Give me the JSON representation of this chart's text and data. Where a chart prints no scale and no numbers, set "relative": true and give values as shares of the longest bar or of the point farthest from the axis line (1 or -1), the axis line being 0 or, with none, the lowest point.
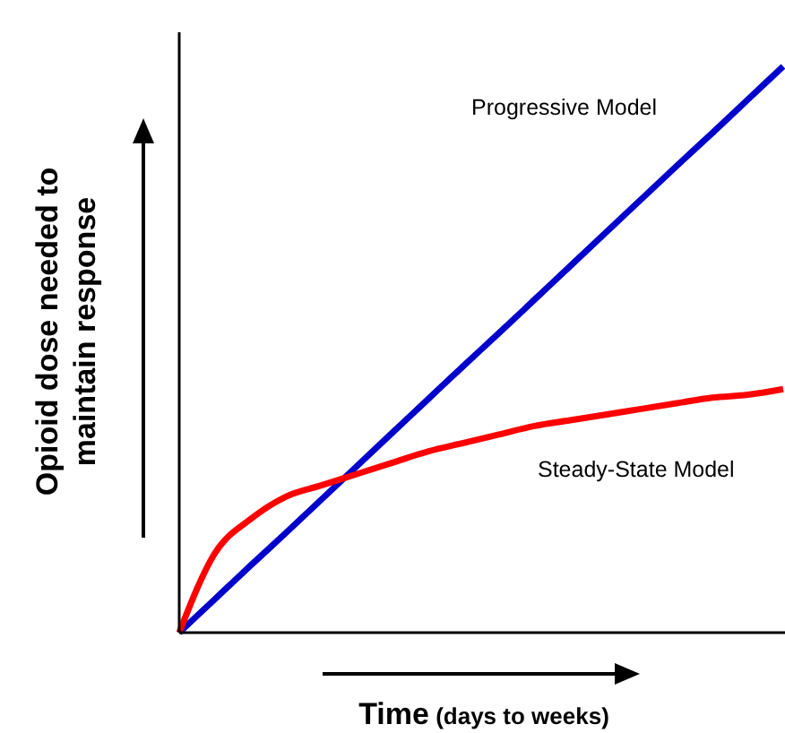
{
  "chart_data": {
    "type": "line",
    "relative": true,
    "xlabel": "Time (days to weeks)",
    "ylabel": "Opioid dose needed to maintain response",
    "categories": [
      null,
      null,
      null,
      null,
      null,
      null,
      null,
      null,
      null,
      null,
      null,
      null,
      null,
      null,
      null,
      null,
      null,
      null
    ],
    "series": [
      {
        "name": "Progressive Model",
        "color": "#0000cc",
        "values": [
          0,
          0.059,
          0.118,
          0.176,
          0.235,
          0.294,
          0.353,
          0.412,
          0.471,
          0.529,
          0.588,
          0.647,
          0.706,
          0.765,
          0.824,
          0.882,
          0.941,
          1
        ]
      },
      {
        "name": "Steady-State Model",
        "color": "#ff0000",
        "values": [
          0,
          0.14,
          0.2,
          0.24,
          0.26,
          0.28,
          0.3,
          0.32,
          0.335,
          0.35,
          0.365,
          0.375,
          0.385,
          0.395,
          0.405,
          0.415,
          0.42,
          0.43
        ]
      }
    ],
    "marker": "none",
    "line_style": "solid"
  }
}
